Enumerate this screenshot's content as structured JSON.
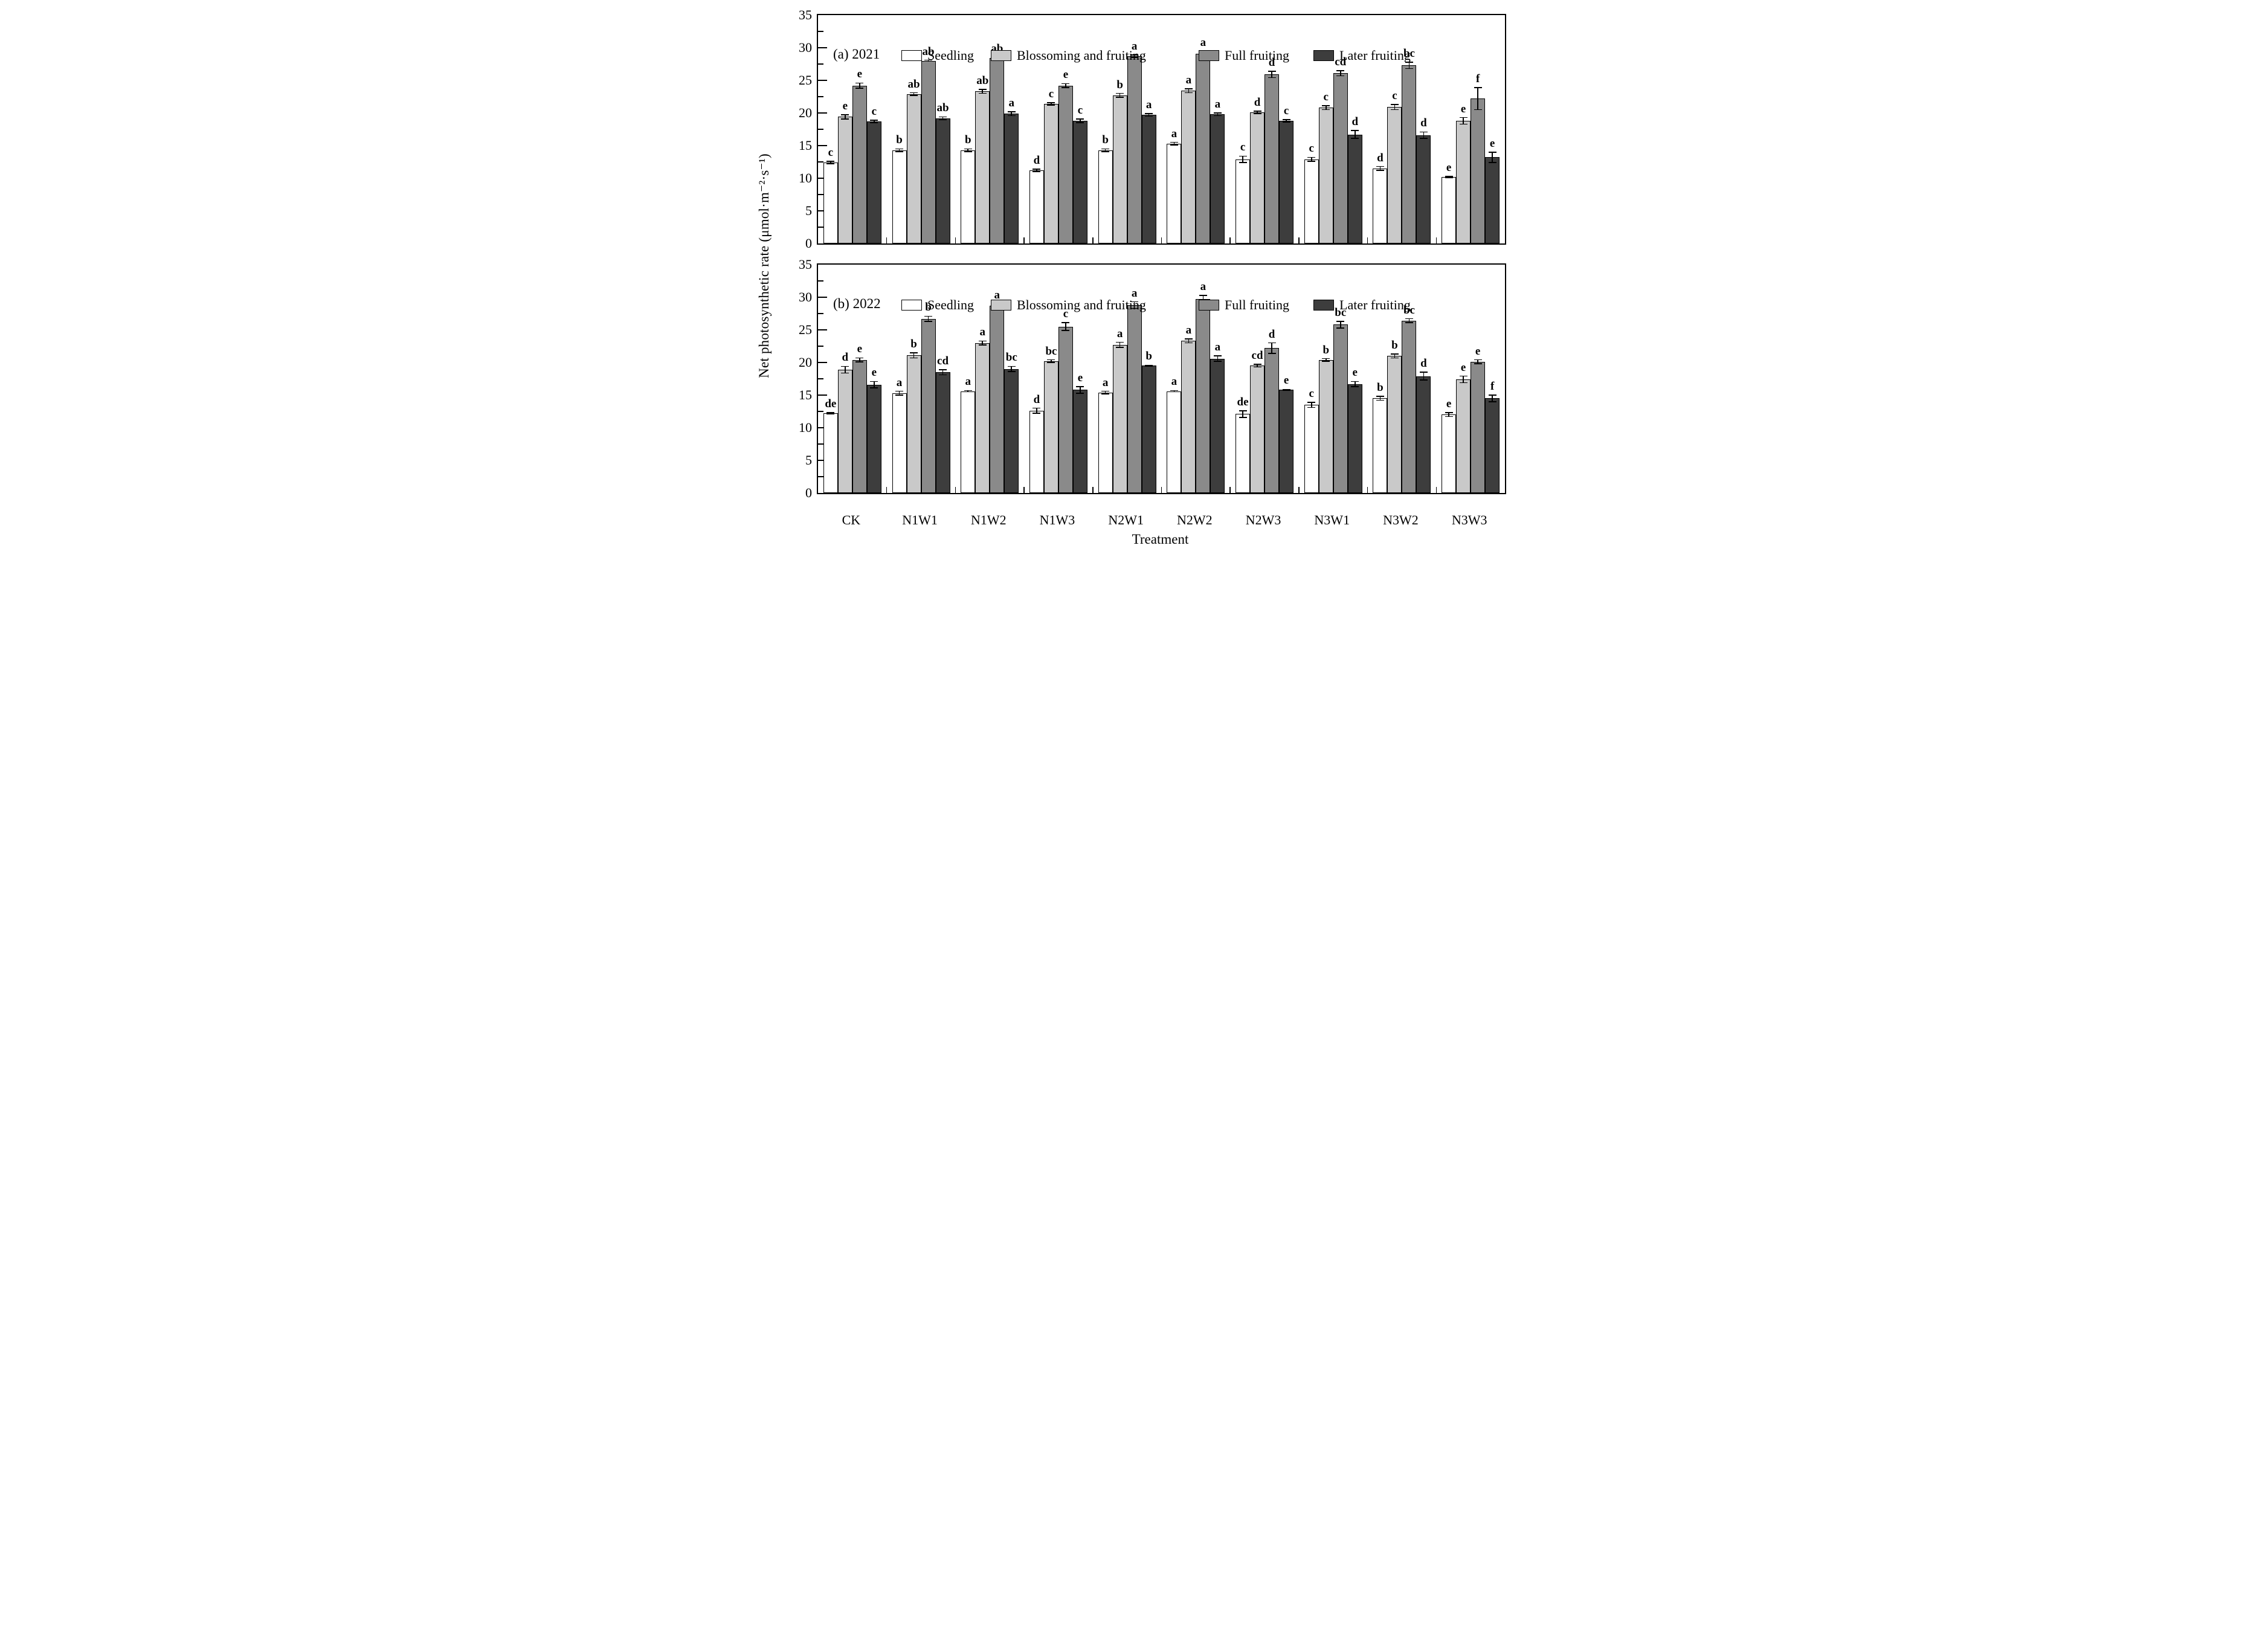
{
  "figure": {
    "y_axis_label": "Net photosynthetic rate (μmol·m⁻²·s⁻¹)",
    "x_axis_label": "Treatment"
  },
  "legend": [
    "Seedling",
    "Blossoming and fruiting",
    "Full fruiting",
    "Later fruiting"
  ],
  "series_colors": [
    "#ffffff",
    "#c9c9c9",
    "#8a8a8a",
    "#3d3d3d"
  ],
  "axis_color": "#000000",
  "chart_data": [
    {
      "type": "bar",
      "panel_label": "(a) 2021",
      "categories": [
        "CK",
        "N1W1",
        "N1W2",
        "N1W3",
        "N2W1",
        "N2W2",
        "N2W3",
        "N3W1",
        "N3W2",
        "N3W3"
      ],
      "xlabel": "Treatment",
      "ylabel": "Net photosynthetic rate (μmol·m⁻²·s⁻¹)",
      "ylim": [
        0,
        35
      ],
      "yticks": [
        0,
        5,
        10,
        15,
        20,
        25,
        30,
        35
      ],
      "grid": false,
      "legend_position": "top-inside",
      "series": [
        {
          "name": "Seedling",
          "values": [
            12.4,
            14.3,
            14.3,
            11.2,
            14.3,
            15.3,
            12.9,
            12.9,
            11.5,
            10.2
          ],
          "errors": [
            0.2,
            0.2,
            0.2,
            0.2,
            0.2,
            0.2,
            0.5,
            0.3,
            0.3,
            0.1
          ],
          "letters": [
            "c",
            "b",
            "b",
            "d",
            "b",
            "a",
            "c",
            "c",
            "d",
            "e"
          ]
        },
        {
          "name": "Blossoming and fruiting",
          "values": [
            19.4,
            22.9,
            23.3,
            21.4,
            22.7,
            23.4,
            20.1,
            20.8,
            20.9,
            18.8
          ],
          "errors": [
            0.3,
            0.2,
            0.3,
            0.2,
            0.3,
            0.3,
            0.2,
            0.3,
            0.4,
            0.5
          ],
          "letters": [
            "e",
            "ab",
            "ab",
            "c",
            "b",
            "a",
            "d",
            "c",
            "c",
            "e"
          ]
        },
        {
          "name": "Full fruiting",
          "values": [
            24.2,
            28.0,
            28.4,
            24.2,
            28.7,
            29.1,
            25.9,
            26.1,
            27.3,
            22.2
          ],
          "errors": [
            0.4,
            0.1,
            0.1,
            0.3,
            0.2,
            0.3,
            0.5,
            0.4,
            0.5,
            1.7
          ],
          "letters": [
            "e",
            "ab",
            "ab",
            "e",
            "a",
            "a",
            "d",
            "cd",
            "bc",
            "f"
          ]
        },
        {
          "name": "Later fruiting",
          "values": [
            18.7,
            19.2,
            19.9,
            18.8,
            19.7,
            19.8,
            18.8,
            16.7,
            16.6,
            13.2
          ],
          "errors": [
            0.2,
            0.2,
            0.3,
            0.3,
            0.2,
            0.2,
            0.2,
            0.6,
            0.5,
            0.8
          ],
          "letters": [
            "c",
            "ab",
            "a",
            "c",
            "a",
            "a",
            "c",
            "d",
            "d",
            "e"
          ]
        }
      ]
    },
    {
      "type": "bar",
      "panel_label": "(b) 2022",
      "categories": [
        "CK",
        "N1W1",
        "N1W2",
        "N1W3",
        "N2W1",
        "N2W2",
        "N2W3",
        "N3W1",
        "N3W2",
        "N3W3"
      ],
      "xlabel": "Treatment",
      "ylabel": "Net photosynthetic rate (μmol·m⁻²·s⁻¹)",
      "ylim": [
        0,
        35
      ],
      "yticks": [
        0,
        5,
        10,
        15,
        20,
        25,
        30,
        35
      ],
      "grid": false,
      "legend_position": "top-inside",
      "series": [
        {
          "name": "Seedling",
          "values": [
            12.2,
            15.3,
            15.6,
            12.6,
            15.4,
            15.6,
            12.1,
            13.5,
            14.5,
            12.0
          ],
          "errors": [
            0.1,
            0.3,
            0.1,
            0.4,
            0.2,
            0.1,
            0.5,
            0.4,
            0.3,
            0.3
          ],
          "letters": [
            "de",
            "a",
            "a",
            "d",
            "a",
            "a",
            "de",
            "c",
            "b",
            "e"
          ]
        },
        {
          "name": "Blossoming and fruiting",
          "values": [
            18.9,
            21.1,
            23.0,
            20.2,
            22.7,
            23.3,
            19.5,
            20.4,
            21.0,
            17.4
          ],
          "errors": [
            0.5,
            0.4,
            0.3,
            0.2,
            0.4,
            0.3,
            0.2,
            0.2,
            0.3,
            0.5
          ],
          "letters": [
            "d",
            "b",
            "a",
            "bc",
            "a",
            "a",
            "cd",
            "b",
            "b",
            "e"
          ]
        },
        {
          "name": "Full fruiting",
          "values": [
            20.4,
            26.7,
            28.7,
            25.5,
            28.8,
            29.7,
            22.2,
            25.8,
            26.4,
            20.1
          ],
          "errors": [
            0.3,
            0.4,
            0.3,
            0.6,
            0.5,
            0.6,
            0.8,
            0.5,
            0.3,
            0.3
          ],
          "letters": [
            "e",
            "b",
            "a",
            "c",
            "a",
            "a",
            "d",
            "bc",
            "bc",
            "e"
          ]
        },
        {
          "name": "Later fruiting",
          "values": [
            16.6,
            18.5,
            19.0,
            15.8,
            19.5,
            20.6,
            15.8,
            16.7,
            17.9,
            14.5
          ],
          "errors": [
            0.5,
            0.4,
            0.4,
            0.5,
            0.1,
            0.4,
            0.1,
            0.4,
            0.6,
            0.5
          ],
          "letters": [
            "e",
            "cd",
            "bc",
            "e",
            "b",
            "a",
            "e",
            "e",
            "d",
            "f"
          ]
        }
      ]
    }
  ]
}
